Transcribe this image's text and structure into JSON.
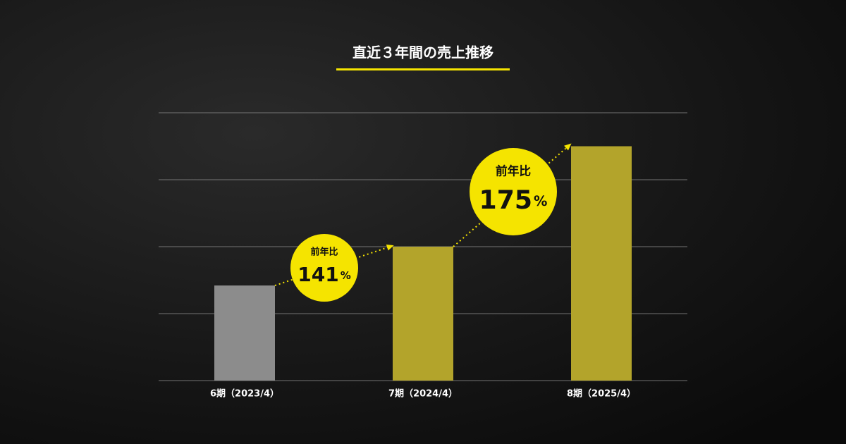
{
  "chart_data": {
    "type": "bar",
    "title": "直近３年間の売上推移",
    "categories": [
      "6期（2023/4）",
      "7期（2024/4）",
      "8期（2025/4）"
    ],
    "values": [
      1.42,
      2.0,
      3.5
    ],
    "colors": [
      "#8c8c8c",
      "#b3a42b",
      "#b3a42b"
    ],
    "ylim": [
      0,
      4
    ],
    "yticks": [
      0,
      1,
      2,
      3,
      4
    ],
    "grid": true,
    "annotations": [
      {
        "label": "前年比",
        "value": 141,
        "unit": "%"
      },
      {
        "label": "前年比",
        "value": 175,
        "unit": "%"
      }
    ]
  }
}
